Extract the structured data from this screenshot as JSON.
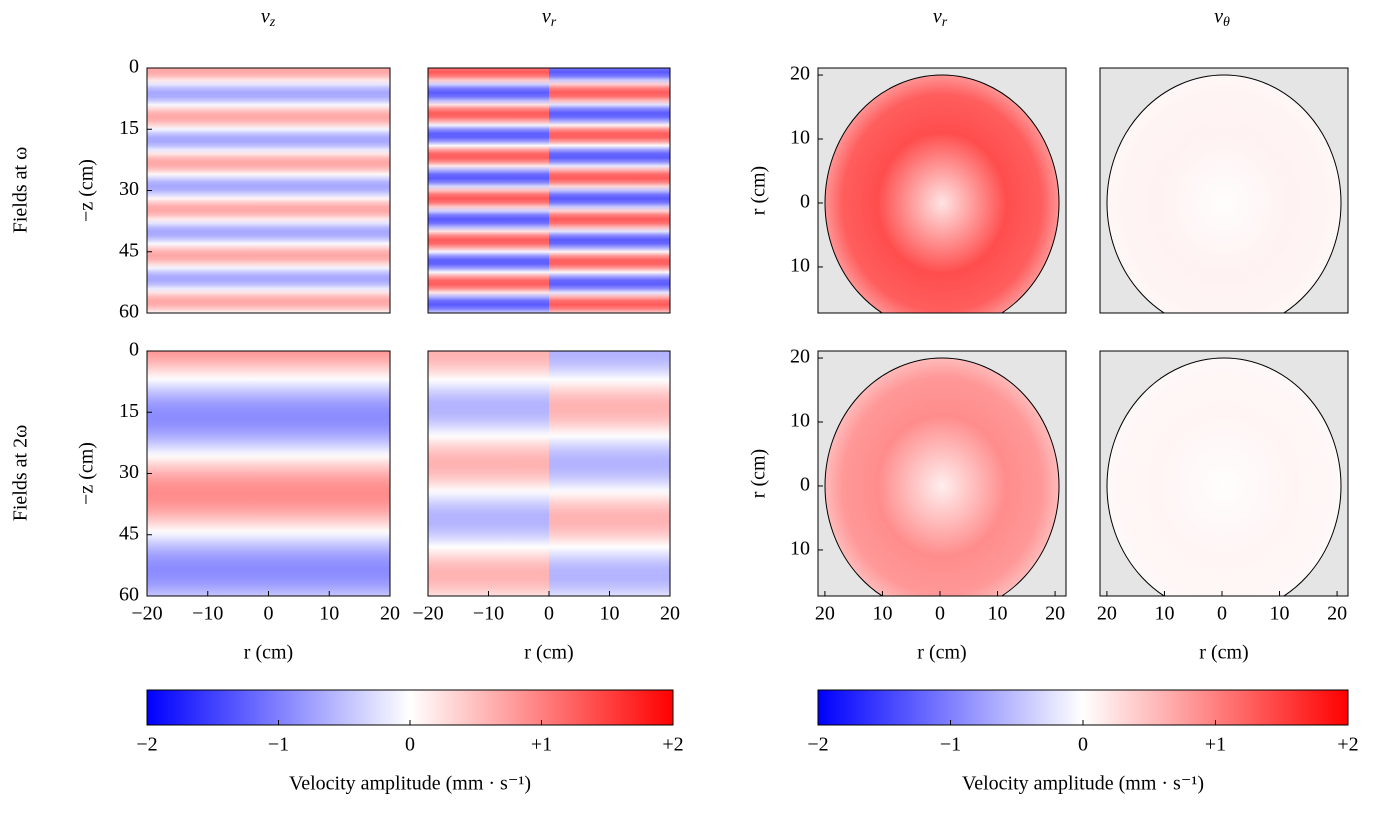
{
  "figure": {
    "column_titles": [
      "vz",
      "vr",
      "vr",
      "vθ"
    ],
    "row_labels": [
      "Fields at ω",
      "Fields at 2ω"
    ]
  },
  "chart_data": [
    {
      "type": "heatmap",
      "ylabel": "−z (cm)",
      "ylim": [
        60,
        0
      ],
      "yticks": [
        0,
        15,
        30,
        45,
        60
      ]
    },
    {
      "type": "heatmap"
    },
    {
      "type": "heatmap",
      "ylabel": "r (cm)",
      "ylim": [
        -17.2,
        21.1
      ],
      "yticks": [
        20,
        10,
        0,
        {
          "value": -10,
          "label": "10"
        }
      ]
    },
    {
      "type": "heatmap"
    },
    {
      "type": "heatmap",
      "ylabel": "−z (cm)",
      "ylim": [
        60,
        0
      ],
      "yticks": [
        0,
        15,
        30,
        45,
        60
      ],
      "xlabel": "r (cm)",
      "xlim": [
        -20,
        20
      ],
      "xticks": [
        {
          "value": -20,
          "label": "−20"
        },
        {
          "value": -10,
          "label": "−10"
        },
        0,
        10,
        20
      ]
    },
    {
      "type": "heatmap",
      "xlabel": "r (cm)",
      "xlim": [
        -20,
        20
      ],
      "xticks": [
        {
          "value": -20,
          "label": "−20"
        },
        {
          "value": -10,
          "label": "−10"
        },
        0,
        10,
        20
      ]
    },
    {
      "type": "heatmap",
      "ylabel": "r (cm)",
      "ylim": [
        -17.2,
        21.1
      ],
      "yticks": [
        20,
        10,
        0,
        {
          "value": -10,
          "label": "10"
        }
      ],
      "xlabel": "r (cm)",
      "xlim": [
        -21.2,
        21.9
      ],
      "xticks": [
        {
          "value": -20,
          "label": "20"
        },
        {
          "value": -10,
          "label": "10"
        },
        0,
        10,
        20
      ]
    },
    {
      "type": "heatmap",
      "xlabel": "r (cm)",
      "xlim": [
        -21.2,
        21.9
      ],
      "xticks": [
        {
          "value": -20,
          "label": "20"
        },
        {
          "value": -10,
          "label": "10"
        },
        0,
        10,
        20
      ]
    }
  ],
  "colorbars": [
    {
      "clim": [
        -2,
        2
      ],
      "ticks": [
        {
          "value": -2,
          "label": "−2"
        },
        {
          "value": -1,
          "label": "−1"
        },
        0,
        {
          "value": 1,
          "label": "+1"
        },
        {
          "value": 2,
          "label": "+2"
        }
      ],
      "label": "Velocity amplitude (mm · s⁻¹)"
    },
    {
      "clim": [
        -2,
        2
      ],
      "ticks": [
        {
          "value": -2,
          "label": "−2"
        },
        {
          "value": -1,
          "label": "−1"
        },
        0,
        {
          "value": 1,
          "label": "+1"
        },
        {
          "value": 2,
          "label": "+2"
        }
      ],
      "label": "Velocity amplitude (mm · s⁻¹)"
    }
  ]
}
